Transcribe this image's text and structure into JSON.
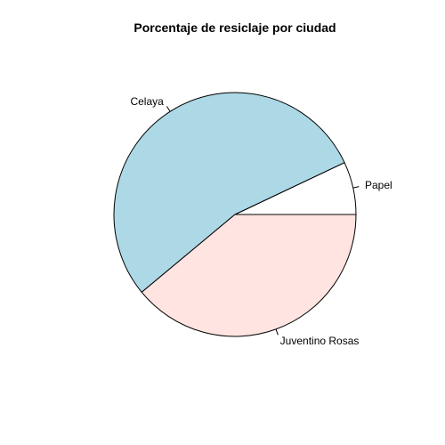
{
  "chart_data": {
    "type": "pie",
    "title": "Porcentaje de resiclaje por ciudad",
    "labels": [
      "Papel",
      "Celaya",
      "Juventino Rosas"
    ],
    "values": [
      7,
      54,
      39
    ],
    "colors": [
      "#ffffff",
      "#add8e6",
      "#ffe4e1"
    ],
    "start_angle_deg": 0,
    "direction": "counterclockwise",
    "stroke_color": "#000000"
  }
}
